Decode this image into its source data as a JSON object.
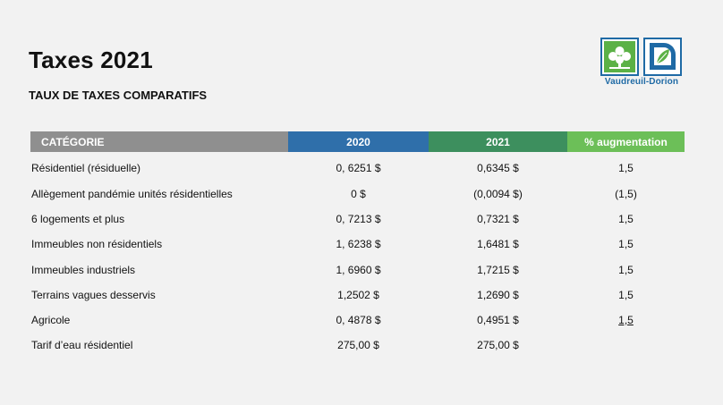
{
  "header": {
    "title": "Taxes 2021",
    "subtitle": "TAUX DE TAXES COMPARATIFS"
  },
  "logo": {
    "text": "Vaudreuil-Dorion",
    "colors": {
      "blue": "#1f6aa5",
      "green": "#5bb146"
    }
  },
  "table": {
    "headers": [
      "CATÉGORIE",
      "2020",
      "2021",
      "% augmentation"
    ],
    "header_colors": [
      "#8f8f8f",
      "#2f6faa",
      "#3d8f5e",
      "#6cbf58"
    ],
    "rows": [
      {
        "category": "Résidentiel (résiduelle)",
        "v2020": "0, 6251 $",
        "v2021": "0,6345 $",
        "pct": "1,5"
      },
      {
        "category": "Allègement pandémie unités résidentielles",
        "v2020": "0 $",
        "v2021": "(0,0094 $)",
        "pct": "(1,5)"
      },
      {
        "category": "6 logements et plus",
        "v2020": "0, 7213 $",
        "v2021": "0,7321 $",
        "pct": "1,5"
      },
      {
        "category": "Immeubles non résidentiels",
        "v2020": "1, 6238 $",
        "v2021": "1,6481 $",
        "pct": "1,5"
      },
      {
        "category": "Immeubles industriels",
        "v2020": "1, 6960 $",
        "v2021": "1,7215 $",
        "pct": "1,5"
      },
      {
        "category": "Terrains vagues desservis",
        "v2020": "1,2502 $",
        "v2021": "1,2690 $",
        "pct": "1,5"
      },
      {
        "category": "Agricole",
        "v2020": "0, 4878 $",
        "v2021": "0,4951 $",
        "pct": "1,5"
      },
      {
        "category": "Tarif d’eau résidentiel",
        "v2020": "275,00 $",
        "v2021": "275,00 $",
        "pct": ""
      }
    ]
  }
}
